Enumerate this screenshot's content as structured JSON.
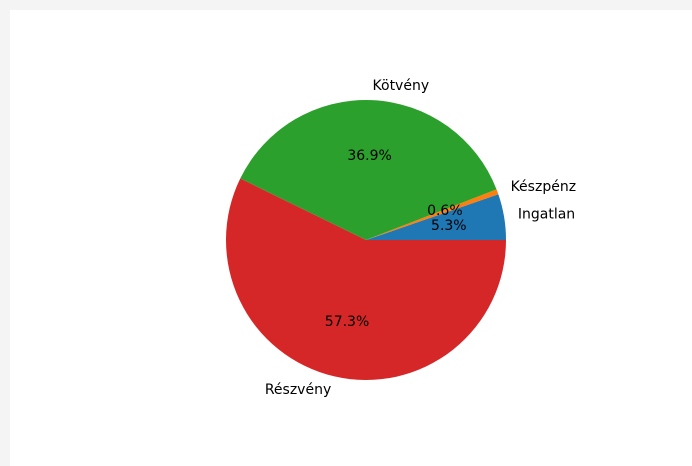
{
  "chart_data": {
    "type": "pie",
    "title": "",
    "slices": [
      {
        "label": "Ingatlan",
        "value": 5.3,
        "pct_text": "5.3%",
        "color": "#1f77b4"
      },
      {
        "label": "Készpénz",
        "value": 0.6,
        "pct_text": "0.6%",
        "color": "#ff7f0e"
      },
      {
        "label": "Kötvény",
        "value": 36.9,
        "pct_text": "36.9%",
        "color": "#2ca02c"
      },
      {
        "label": "Részvény",
        "value": 57.3,
        "pct_text": "57.3%",
        "color": "#d62728"
      }
    ],
    "start_angle_deg": 0,
    "direction": "counterclockwise",
    "legend": "none"
  }
}
